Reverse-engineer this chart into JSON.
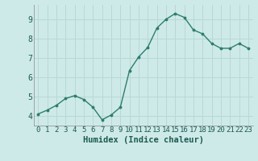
{
  "x": [
    0,
    1,
    2,
    3,
    4,
    5,
    6,
    7,
    8,
    9,
    10,
    11,
    12,
    13,
    14,
    15,
    16,
    17,
    18,
    19,
    20,
    21,
    22,
    23
  ],
  "y": [
    4.1,
    4.3,
    4.55,
    4.9,
    5.05,
    4.85,
    4.45,
    3.8,
    4.05,
    4.45,
    6.35,
    7.05,
    7.55,
    8.55,
    9.0,
    9.3,
    9.1,
    8.45,
    8.25,
    7.75,
    7.5,
    7.5,
    7.75,
    7.5
  ],
  "line_color": "#2e7d6e",
  "marker_color": "#2e7d6e",
  "bg_color": "#ceeae8",
  "grid_color": "#b8d8d4",
  "xlabel": "Humidex (Indice chaleur)",
  "xlabel_fontsize": 7.5,
  "tick_fontsize": 6.5,
  "ytick_fontsize": 7,
  "ylim": [
    3.5,
    9.75
  ],
  "xlim": [
    -0.5,
    23.5
  ],
  "yticks": [
    4,
    5,
    6,
    7,
    8,
    9
  ],
  "xticks": [
    0,
    1,
    2,
    3,
    4,
    5,
    6,
    7,
    8,
    9,
    10,
    11,
    12,
    13,
    14,
    15,
    16,
    17,
    18,
    19,
    20,
    21,
    22,
    23
  ]
}
